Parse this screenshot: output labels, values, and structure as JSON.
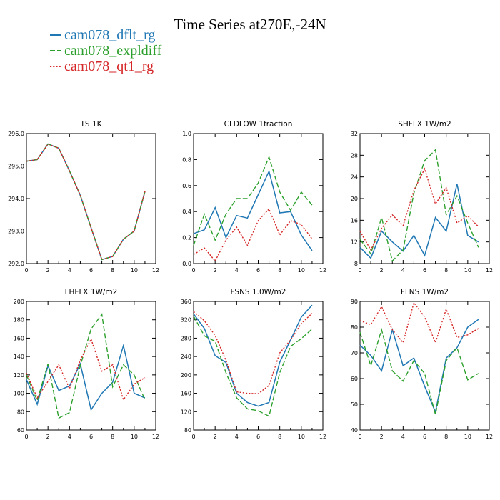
{
  "title": "Time Series at270E,-24N",
  "legend": [
    {
      "label": "cam078_dflt_rg",
      "color": "#1f77b4",
      "dash": "solid"
    },
    {
      "label": "cam078_expldiff",
      "color": "#2ca02c",
      "dash": "dashed"
    },
    {
      "label": "cam078_qt1_rg",
      "color": "#d62728",
      "dash": "dotted"
    }
  ],
  "chart_data": [
    {
      "type": "line",
      "title": "TS   1K",
      "x": [
        0,
        1,
        2,
        3,
        4,
        5,
        6,
        7,
        8,
        9,
        10,
        11
      ],
      "xlim": [
        0,
        12
      ],
      "xticks": [
        "0",
        "2",
        "4",
        "6",
        "8",
        "10",
        "12"
      ],
      "ylim": [
        292,
        296
      ],
      "yticks": [
        "292.0",
        "293.0",
        "294.0",
        "295.0",
        "296.0"
      ],
      "series": [
        {
          "name": "cam078_dflt_rg",
          "values": [
            295.15,
            295.2,
            295.68,
            295.55,
            294.85,
            294.1,
            293.1,
            292.12,
            292.22,
            292.75,
            293.0,
            294.22
          ]
        },
        {
          "name": "cam078_expldiff",
          "values": [
            295.15,
            295.2,
            295.68,
            295.55,
            294.85,
            294.1,
            293.1,
            292.12,
            292.22,
            292.75,
            293.0,
            294.22
          ]
        },
        {
          "name": "cam078_qt1_rg",
          "values": [
            295.15,
            295.2,
            295.68,
            295.55,
            294.85,
            294.1,
            293.1,
            292.12,
            292.22,
            292.75,
            293.0,
            294.22
          ]
        }
      ]
    },
    {
      "type": "line",
      "title": "CLDLOW   1fraction",
      "x": [
        0,
        1,
        2,
        3,
        4,
        5,
        6,
        7,
        8,
        9,
        10,
        11
      ],
      "xlim": [
        0,
        12
      ],
      "xticks": [
        "0",
        "2",
        "4",
        "6",
        "8",
        "10",
        "12"
      ],
      "ylim": [
        0,
        1
      ],
      "yticks": [
        "0.0",
        "0.2",
        "0.4",
        "0.6",
        "0.8",
        "1.0"
      ],
      "series": [
        {
          "name": "cam078_dflt_rg",
          "values": [
            0.23,
            0.26,
            0.43,
            0.2,
            0.37,
            0.35,
            0.53,
            0.71,
            0.39,
            0.4,
            0.22,
            0.1
          ]
        },
        {
          "name": "cam078_expldiff",
          "values": [
            0.14,
            0.38,
            0.18,
            0.38,
            0.5,
            0.5,
            0.62,
            0.82,
            0.55,
            0.41,
            0.55,
            0.45
          ]
        },
        {
          "name": "cam078_qt1_rg",
          "values": [
            0.07,
            0.12,
            0.02,
            0.18,
            0.28,
            0.14,
            0.33,
            0.42,
            0.22,
            0.33,
            0.3,
            0.19
          ]
        }
      ]
    },
    {
      "type": "line",
      "title": "SHFLX   1W/m2",
      "x": [
        0,
        1,
        2,
        3,
        4,
        5,
        6,
        7,
        8,
        9,
        10,
        11
      ],
      "xlim": [
        0,
        12
      ],
      "xticks": [
        "0",
        "2",
        "4",
        "6",
        "8",
        "10",
        "12"
      ],
      "ylim": [
        8,
        32
      ],
      "yticks": [
        "8",
        "12",
        "16",
        "20",
        "24",
        "28",
        "32"
      ],
      "series": [
        {
          "name": "cam078_dflt_rg",
          "values": [
            11,
            9,
            14,
            12,
            10.3,
            13.2,
            9.5,
            16.5,
            14,
            22.7,
            13.2,
            12
          ]
        },
        {
          "name": "cam078_expldiff",
          "values": [
            12.5,
            9.8,
            16.5,
            8.5,
            10.5,
            21,
            27,
            29,
            17,
            20.5,
            15.5,
            11
          ]
        },
        {
          "name": "cam078_qt1_rg",
          "values": [
            14,
            10.5,
            14.5,
            17,
            15,
            21.5,
            25.5,
            19,
            22,
            15.5,
            16.8,
            14.8
          ]
        }
      ]
    },
    {
      "type": "line",
      "title": "LHFLX   1W/m2",
      "x": [
        0,
        1,
        2,
        3,
        4,
        5,
        6,
        7,
        8,
        9,
        10,
        11
      ],
      "xlim": [
        0,
        12
      ],
      "xticks": [
        "0",
        "2",
        "4",
        "6",
        "8",
        "10",
        "12"
      ],
      "ylim": [
        60,
        200
      ],
      "yticks": [
        "60",
        "80",
        "100",
        "120",
        "140",
        "160",
        "180",
        "200"
      ],
      "series": [
        {
          "name": "cam078_dflt_rg",
          "values": [
            115,
            88,
            130,
            103,
            108,
            132,
            82,
            100,
            112,
            152,
            100,
            95
          ]
        },
        {
          "name": "cam078_expldiff",
          "values": [
            120,
            92,
            132,
            73,
            79,
            130,
            170,
            186,
            107,
            131,
            120,
            93
          ]
        },
        {
          "name": "cam078_qt1_rg",
          "values": [
            122,
            95,
            113,
            131,
            105,
            136,
            159,
            124,
            131,
            93,
            110,
            117
          ]
        }
      ]
    },
    {
      "type": "line",
      "title": "FSNS   1.0W/m2",
      "x": [
        0,
        1,
        2,
        3,
        4,
        5,
        6,
        7,
        8,
        9,
        10,
        11
      ],
      "xlim": [
        0,
        12
      ],
      "xticks": [
        "0",
        "2",
        "4",
        "6",
        "8",
        "10",
        "12"
      ],
      "ylim": [
        80,
        360
      ],
      "yticks": [
        "80",
        "120",
        "160",
        "200",
        "240",
        "280",
        "320",
        "360"
      ],
      "series": [
        {
          "name": "cam078_dflt_rg",
          "values": [
            333,
            301,
            242,
            227,
            160,
            140,
            132,
            140,
            228,
            276,
            326,
            352
          ]
        },
        {
          "name": "cam078_expldiff",
          "values": [
            328,
            285,
            273,
            205,
            150,
            126,
            122,
            110,
            205,
            262,
            279,
            300
          ]
        },
        {
          "name": "cam078_qt1_rg",
          "values": [
            338,
            318,
            286,
            232,
            163,
            160,
            159,
            177,
            248,
            276,
            312,
            334
          ]
        }
      ]
    },
    {
      "type": "line",
      "title": "FLNS   1W/m2",
      "x": [
        0,
        1,
        2,
        3,
        4,
        5,
        6,
        7,
        8,
        9,
        10,
        11
      ],
      "xlim": [
        0,
        12
      ],
      "xticks": [
        "0",
        "2",
        "4",
        "6",
        "8",
        "10",
        "12"
      ],
      "ylim": [
        40,
        90
      ],
      "yticks": [
        "40",
        "50",
        "60",
        "70",
        "80",
        "90"
      ],
      "series": [
        {
          "name": "cam078_dflt_rg",
          "values": [
            73,
            69,
            63,
            79,
            65,
            68,
            57,
            47,
            68,
            72,
            80,
            83
          ]
        },
        {
          "name": "cam078_expldiff",
          "values": [
            78,
            65,
            79,
            63,
            59,
            67,
            62,
            46,
            67,
            72,
            59.5,
            62
          ]
        },
        {
          "name": "cam078_qt1_rg",
          "values": [
            82.5,
            81,
            88,
            79,
            74,
            89.5,
            84,
            74,
            87,
            76,
            77,
            79.5
          ]
        }
      ]
    }
  ]
}
